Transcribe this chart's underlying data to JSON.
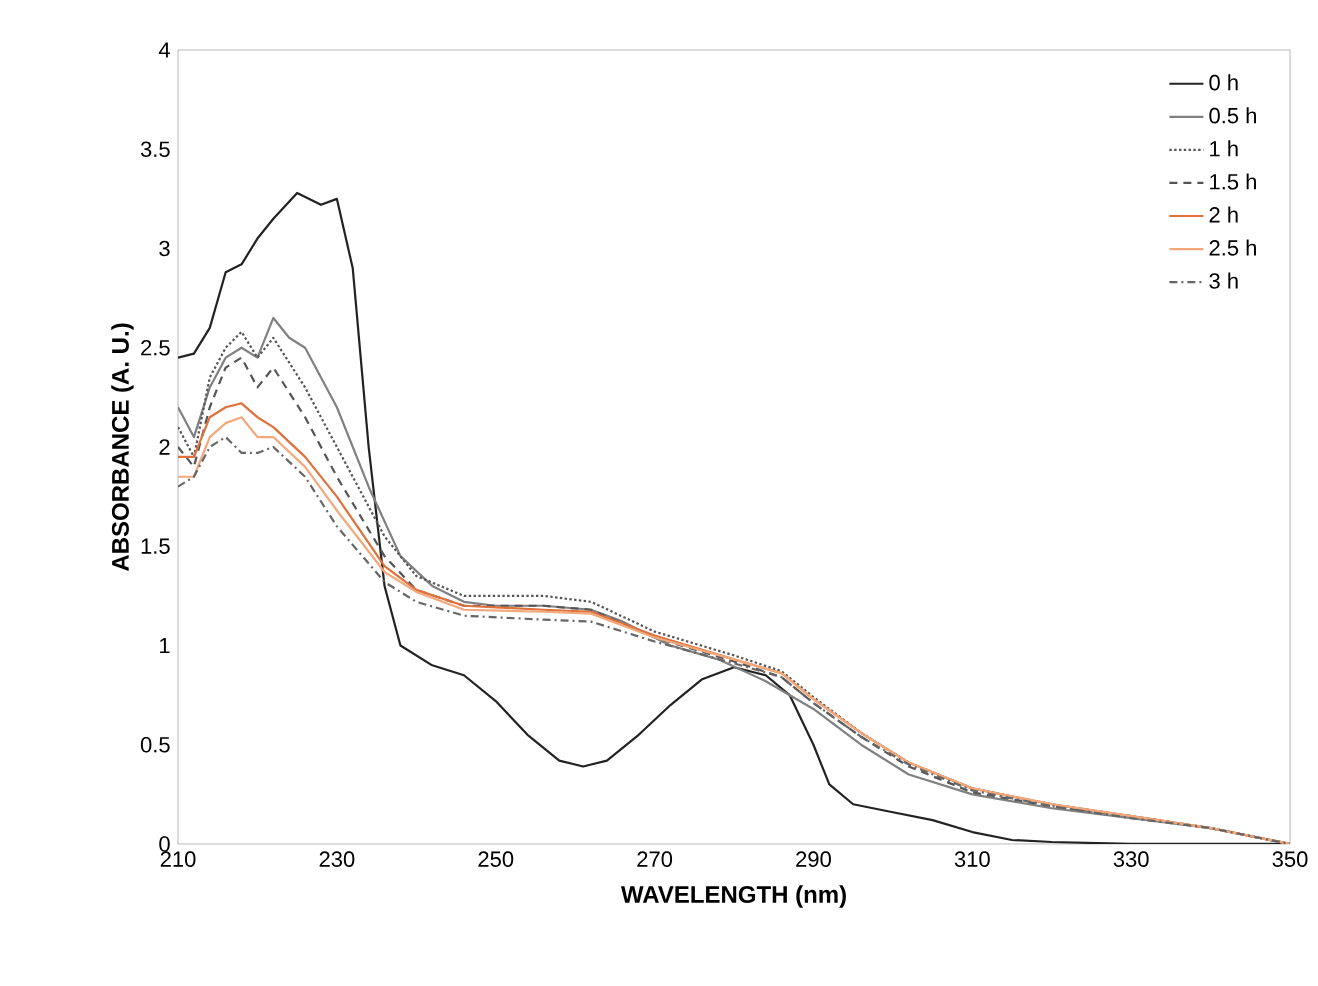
{
  "chart_data": {
    "type": "line",
    "xlabel": "WAVELENGTH (nm)",
    "ylabel": "ABSORBANCE (A. U.)",
    "xlim": [
      210,
      350
    ],
    "ylim": [
      0,
      4
    ],
    "xticks": [
      210,
      230,
      250,
      270,
      290,
      310,
      330,
      350
    ],
    "yticks": [
      0,
      0.5,
      1,
      1.5,
      2,
      2.5,
      3,
      3.5,
      4
    ],
    "grid": false,
    "legend": "top right",
    "marker": "none",
    "series": [
      {
        "name": "0 h",
        "color": "#222222",
        "line_style": "solid",
        "x": [
          210,
          212,
          214,
          216,
          218,
          220,
          222,
          225,
          228,
          230,
          232,
          234,
          236,
          238,
          242,
          246,
          250,
          254,
          258,
          261,
          264,
          268,
          272,
          276,
          280,
          284,
          287,
          290,
          292,
          295,
          300,
          305,
          310,
          315,
          320,
          330,
          350
        ],
        "values": [
          2.45,
          2.47,
          2.6,
          2.88,
          2.92,
          3.05,
          3.15,
          3.28,
          3.22,
          3.25,
          2.9,
          2.0,
          1.3,
          1.0,
          0.9,
          0.85,
          0.72,
          0.55,
          0.42,
          0.39,
          0.42,
          0.55,
          0.7,
          0.83,
          0.89,
          0.85,
          0.75,
          0.5,
          0.3,
          0.2,
          0.16,
          0.12,
          0.06,
          0.02,
          0.01,
          0.0,
          0.0
        ]
      },
      {
        "name": "0.5 h",
        "color": "#808080",
        "line_style": "solid",
        "x": [
          210,
          212,
          214,
          216,
          218,
          220,
          222,
          224,
          226,
          230,
          234,
          238,
          242,
          246,
          250,
          256,
          262,
          266,
          272,
          278,
          284,
          290,
          296,
          302,
          310,
          320,
          330,
          340,
          350
        ],
        "values": [
          2.2,
          2.05,
          2.3,
          2.45,
          2.5,
          2.45,
          2.65,
          2.55,
          2.5,
          2.2,
          1.8,
          1.45,
          1.3,
          1.22,
          1.2,
          1.2,
          1.18,
          1.12,
          1.0,
          0.93,
          0.82,
          0.68,
          0.5,
          0.35,
          0.25,
          0.18,
          0.13,
          0.08,
          0.0
        ]
      },
      {
        "name": "1 h",
        "color": "#555555",
        "line_style": "dotted",
        "x": [
          210,
          212,
          214,
          216,
          218,
          220,
          222,
          226,
          230,
          236,
          240,
          246,
          256,
          262,
          270,
          280,
          286,
          290,
          296,
          302,
          310,
          320,
          330,
          340,
          350
        ],
        "values": [
          2.1,
          1.95,
          2.35,
          2.5,
          2.58,
          2.45,
          2.55,
          2.3,
          2.0,
          1.55,
          1.35,
          1.25,
          1.25,
          1.22,
          1.07,
          0.95,
          0.87,
          0.74,
          0.56,
          0.41,
          0.28,
          0.2,
          0.14,
          0.08,
          0.0
        ]
      },
      {
        "name": "1.5 h",
        "color": "#555555",
        "line_style": "dashed",
        "x": [
          210,
          212,
          214,
          216,
          218,
          220,
          222,
          226,
          230,
          236,
          240,
          246,
          256,
          262,
          270,
          280,
          286,
          290,
          296,
          302,
          310,
          320,
          330,
          340,
          350
        ],
        "values": [
          2.0,
          1.9,
          2.2,
          2.4,
          2.45,
          2.3,
          2.4,
          2.15,
          1.85,
          1.45,
          1.28,
          1.2,
          1.2,
          1.18,
          1.04,
          0.92,
          0.84,
          0.71,
          0.54,
          0.39,
          0.26,
          0.19,
          0.14,
          0.08,
          0.0
        ]
      },
      {
        "name": "2 h",
        "color": "#e0703a",
        "line_style": "solid",
        "x": [
          210,
          212,
          214,
          216,
          218,
          220,
          222,
          226,
          230,
          236,
          240,
          246,
          256,
          262,
          270,
          280,
          286,
          290,
          296,
          302,
          310,
          320,
          330,
          340,
          350
        ],
        "values": [
          1.95,
          1.95,
          2.15,
          2.2,
          2.22,
          2.15,
          2.1,
          1.95,
          1.75,
          1.4,
          1.28,
          1.2,
          1.18,
          1.17,
          1.05,
          0.93,
          0.86,
          0.73,
          0.56,
          0.41,
          0.28,
          0.2,
          0.14,
          0.08,
          0.0
        ]
      },
      {
        "name": "2.5 h",
        "color": "#f2a87a",
        "line_style": "solid",
        "x": [
          210,
          212,
          214,
          216,
          218,
          220,
          222,
          226,
          230,
          236,
          240,
          246,
          256,
          262,
          270,
          280,
          286,
          290,
          296,
          302,
          310,
          320,
          330,
          340,
          350
        ],
        "values": [
          1.85,
          1.85,
          2.05,
          2.12,
          2.15,
          2.05,
          2.05,
          1.9,
          1.68,
          1.37,
          1.27,
          1.18,
          1.17,
          1.16,
          1.04,
          0.93,
          0.86,
          0.73,
          0.56,
          0.41,
          0.28,
          0.2,
          0.14,
          0.08,
          0.0
        ]
      },
      {
        "name": "3 h",
        "color": "#666666",
        "line_style": "dashdot",
        "x": [
          210,
          212,
          214,
          216,
          218,
          220,
          222,
          226,
          230,
          236,
          240,
          246,
          256,
          262,
          270,
          280,
          286,
          290,
          296,
          302,
          310,
          320,
          330,
          340,
          350
        ],
        "values": [
          1.8,
          1.85,
          2.0,
          2.05,
          1.97,
          1.97,
          2.0,
          1.85,
          1.6,
          1.32,
          1.22,
          1.15,
          1.13,
          1.12,
          1.02,
          0.91,
          0.84,
          0.71,
          0.54,
          0.4,
          0.27,
          0.19,
          0.13,
          0.08,
          0.0
        ]
      }
    ]
  }
}
